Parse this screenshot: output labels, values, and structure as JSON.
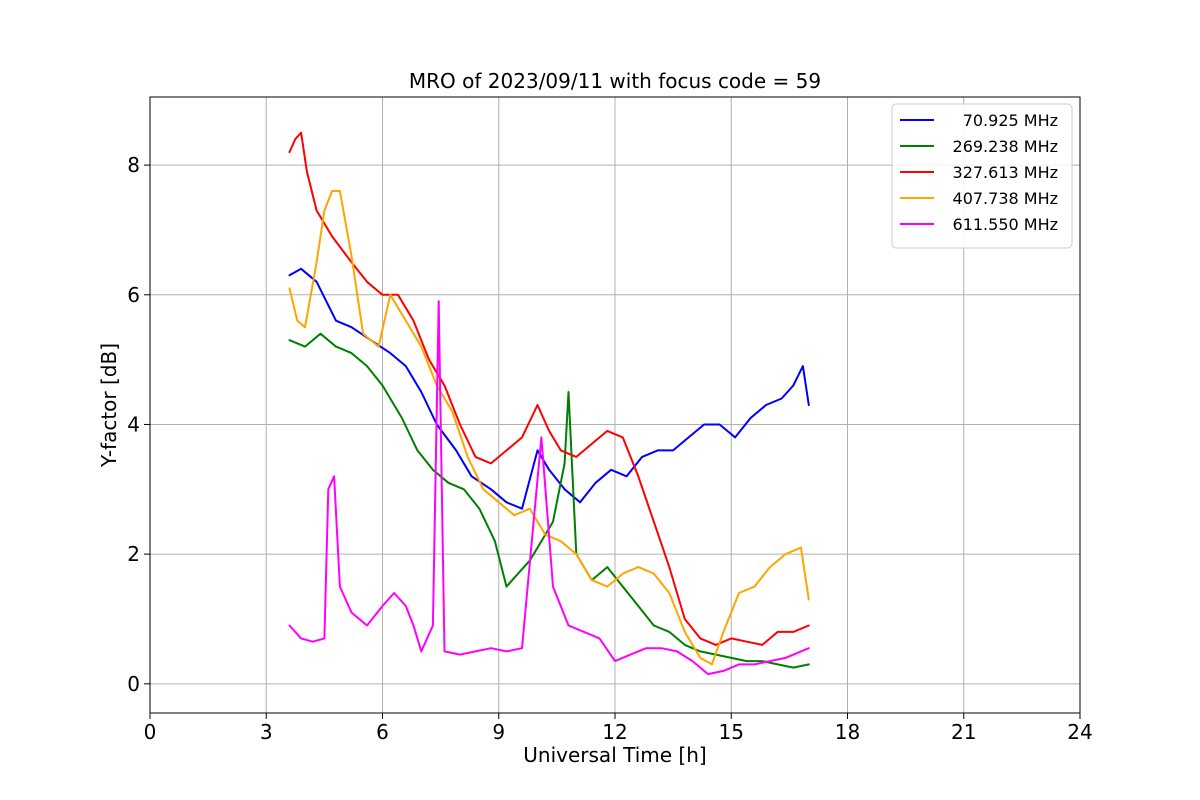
{
  "chart_data": {
    "type": "line",
    "title": "MRO of 2023/09/11 with focus code = 59",
    "xlabel": "Universal Time [h]",
    "ylabel": "Y-factor [dB]",
    "xlim": [
      0,
      24
    ],
    "ylim": [
      -0.45,
      9.05
    ],
    "xticks": [
      0,
      3,
      6,
      9,
      12,
      15,
      18,
      21,
      24
    ],
    "yticks": [
      0,
      2,
      4,
      6,
      8
    ],
    "grid": true,
    "legend_position": "top-right",
    "series": [
      {
        "name": "70.925 MHz",
        "color": "#0000ff",
        "x": [
          3.6,
          3.9,
          4.3,
          4.8,
          5.2,
          5.7,
          6.2,
          6.6,
          7.0,
          7.4,
          7.9,
          8.3,
          8.8,
          9.2,
          9.6,
          10.0,
          10.3,
          10.7,
          11.1,
          11.5,
          11.9,
          12.3,
          12.7,
          13.1,
          13.5,
          13.9,
          14.3,
          14.7,
          15.1,
          15.5,
          15.9,
          16.3,
          16.6,
          16.85,
          17.0
        ],
        "y": [
          6.3,
          6.4,
          6.2,
          5.6,
          5.5,
          5.3,
          5.1,
          4.9,
          4.5,
          4.0,
          3.6,
          3.2,
          3.0,
          2.8,
          2.7,
          3.6,
          3.3,
          3.0,
          2.8,
          3.1,
          3.3,
          3.2,
          3.5,
          3.6,
          3.6,
          3.8,
          4.0,
          4.0,
          3.8,
          4.1,
          4.3,
          4.4,
          4.6,
          4.9,
          4.3
        ]
      },
      {
        "name": "269.238 MHz",
        "color": "#008000",
        "x": [
          3.6,
          4.0,
          4.4,
          4.8,
          5.2,
          5.6,
          6.0,
          6.5,
          6.9,
          7.3,
          7.7,
          8.1,
          8.5,
          8.9,
          9.2,
          9.5,
          9.8,
          10.1,
          10.4,
          10.7,
          10.8,
          11.0,
          11.4,
          11.8,
          12.2,
          12.6,
          13.0,
          13.4,
          13.8,
          14.2,
          14.6,
          15.0,
          15.4,
          15.8,
          16.2,
          16.6,
          17.0
        ],
        "y": [
          5.3,
          5.2,
          5.4,
          5.2,
          5.1,
          4.9,
          4.6,
          4.1,
          3.6,
          3.3,
          3.1,
          3.0,
          2.7,
          2.2,
          1.5,
          1.7,
          1.9,
          2.2,
          2.5,
          3.4,
          4.5,
          2.0,
          1.6,
          1.8,
          1.5,
          1.2,
          0.9,
          0.8,
          0.6,
          0.5,
          0.45,
          0.4,
          0.35,
          0.35,
          0.3,
          0.25,
          0.3
        ]
      },
      {
        "name": "327.613 MHz",
        "color": "#ff0000",
        "x": [
          3.6,
          3.75,
          3.9,
          4.05,
          4.3,
          4.7,
          5.2,
          5.6,
          6.0,
          6.4,
          6.8,
          7.2,
          7.6,
          8.0,
          8.4,
          8.8,
          9.2,
          9.6,
          10.0,
          10.3,
          10.6,
          11.0,
          11.4,
          11.8,
          12.2,
          12.6,
          13.0,
          13.4,
          13.8,
          14.2,
          14.6,
          15.0,
          15.4,
          15.8,
          16.2,
          16.6,
          17.0
        ],
        "y": [
          8.2,
          8.4,
          8.5,
          7.9,
          7.3,
          6.9,
          6.5,
          6.2,
          6.0,
          6.0,
          5.6,
          5.0,
          4.6,
          4.0,
          3.5,
          3.4,
          3.6,
          3.8,
          4.3,
          3.9,
          3.6,
          3.5,
          3.7,
          3.9,
          3.8,
          3.2,
          2.5,
          1.8,
          1.0,
          0.7,
          0.6,
          0.7,
          0.65,
          0.6,
          0.8,
          0.8,
          0.9
        ]
      },
      {
        "name": "407.738 MHz",
        "color": "#ffa500",
        "x": [
          3.6,
          3.8,
          4.0,
          4.3,
          4.5,
          4.7,
          4.9,
          5.2,
          5.5,
          5.9,
          6.2,
          6.6,
          7.0,
          7.4,
          7.8,
          8.2,
          8.6,
          9.0,
          9.4,
          9.8,
          10.2,
          10.6,
          11.0,
          11.4,
          11.8,
          12.2,
          12.6,
          13.0,
          13.4,
          13.8,
          14.2,
          14.5,
          14.8,
          15.2,
          15.6,
          16.0,
          16.4,
          16.8,
          17.0
        ],
        "y": [
          6.1,
          5.6,
          5.5,
          6.5,
          7.3,
          7.6,
          7.6,
          6.6,
          5.4,
          5.2,
          6.0,
          5.6,
          5.2,
          4.6,
          4.2,
          3.5,
          3.0,
          2.8,
          2.6,
          2.7,
          2.3,
          2.2,
          2.0,
          1.6,
          1.5,
          1.7,
          1.8,
          1.7,
          1.4,
          0.8,
          0.4,
          0.3,
          0.8,
          1.4,
          1.5,
          1.8,
          2.0,
          2.1,
          1.3
        ]
      },
      {
        "name": "611.550 MHz",
        "color": "#ff00ff",
        "x": [
          3.6,
          3.9,
          4.2,
          4.5,
          4.6,
          4.75,
          4.9,
          5.2,
          5.6,
          6.0,
          6.3,
          6.6,
          6.8,
          7.0,
          7.3,
          7.45,
          7.6,
          8.0,
          8.4,
          8.8,
          9.2,
          9.6,
          9.9,
          10.1,
          10.4,
          10.8,
          11.2,
          11.6,
          12.0,
          12.4,
          12.8,
          13.2,
          13.6,
          14.0,
          14.4,
          14.8,
          15.2,
          15.6,
          16.0,
          16.4,
          16.8,
          17.0
        ],
        "y": [
          0.9,
          0.7,
          0.65,
          0.7,
          3.0,
          3.2,
          1.5,
          1.1,
          0.9,
          1.2,
          1.4,
          1.2,
          0.9,
          0.5,
          0.9,
          5.9,
          0.5,
          0.45,
          0.5,
          0.55,
          0.5,
          0.55,
          2.5,
          3.8,
          1.5,
          0.9,
          0.8,
          0.7,
          0.35,
          0.45,
          0.55,
          0.55,
          0.5,
          0.35,
          0.15,
          0.2,
          0.3,
          0.3,
          0.35,
          0.4,
          0.5,
          0.55
        ]
      }
    ]
  }
}
